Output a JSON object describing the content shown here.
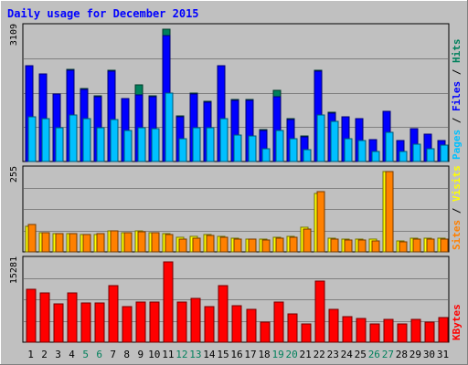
{
  "chart_data": {
    "type": "bar",
    "title": "Daily usage for December 2015",
    "categories": [
      "1",
      "2",
      "3",
      "4",
      "5",
      "6",
      "7",
      "8",
      "9",
      "10",
      "11",
      "12",
      "13",
      "14",
      "15",
      "16",
      "17",
      "18",
      "19",
      "20",
      "21",
      "22",
      "23",
      "24",
      "25",
      "26",
      "27",
      "28",
      "29",
      "30",
      "31"
    ],
    "weekend_days": [
      5,
      6,
      12,
      13,
      19,
      20,
      26,
      27
    ],
    "colors": {
      "hits": "#00805c",
      "files": "#0000ff",
      "pages": "#00c0ff",
      "visits": "#ffff00",
      "sites": "#ff8000",
      "kbytes": "#ff0000",
      "title": "#0000ff",
      "weekend_label": "#00805c"
    },
    "panels": [
      {
        "id": "hits_files_pages",
        "ymax_label": "3109",
        "ylim": [
          0,
          3109
        ],
        "legend": [
          {
            "text": "Pages",
            "color": "#00c0ff"
          },
          {
            "text": "Files",
            "color": "#0000ff"
          },
          {
            "text": "Hits",
            "color": "#00805c"
          }
        ],
        "series": [
          {
            "name": "Hits",
            "values": [
              2260,
              2060,
              1590,
              2160,
              1710,
              1540,
              2140,
              1480,
              1800,
              1540,
              3109,
              1070,
              1600,
              1410,
              2260,
              1450,
              1450,
              740,
              1680,
              1000,
              590,
              2140,
              1150,
              1060,
              1010,
              520,
              1180,
              500,
              780,
              650,
              500
            ]
          },
          {
            "name": "Files",
            "values": [
              2250,
              2050,
              1580,
              2150,
              1700,
              1530,
              2130,
              1470,
              1560,
              1530,
              2950,
              1060,
              1590,
              1400,
              2250,
              1440,
              1440,
              730,
              1530,
              990,
              580,
              2130,
              1140,
              1050,
              1000,
              510,
              1170,
              490,
              770,
              640,
              490
            ]
          },
          {
            "name": "Pages",
            "values": [
              1040,
              1000,
              800,
              1100,
              1000,
              790,
              980,
              720,
              800,
              780,
              1600,
              540,
              800,
              800,
              1000,
              620,
              600,
              300,
              720,
              530,
              280,
              1100,
              940,
              530,
              500,
              230,
              690,
              230,
              400,
              290,
              380
            ]
          }
        ]
      },
      {
        "id": "visits_sites",
        "ymax_label": "255",
        "ylim": [
          0,
          255
        ],
        "legend": [
          {
            "text": "Sites",
            "color": "#ff8000"
          },
          {
            "text": "Visits",
            "color": "#ffff00"
          }
        ],
        "series": [
          {
            "name": "Visits",
            "values": [
              82,
              60,
              58,
              58,
              55,
              55,
              68,
              62,
              68,
              62,
              58,
              45,
              48,
              55,
              48,
              44,
              42,
              40,
              45,
              48,
              78,
              185,
              44,
              40,
              40,
              40,
              255,
              35,
              44,
              44,
              44
            ]
          },
          {
            "name": "Sites",
            "values": [
              88,
              60,
              58,
              58,
              55,
              58,
              68,
              62,
              64,
              60,
              54,
              42,
              44,
              52,
              46,
              40,
              40,
              38,
              44,
              46,
              72,
              190,
              42,
              38,
              38,
              35,
              255,
              32,
              42,
              42,
              40
            ]
          }
        ]
      },
      {
        "id": "kbytes",
        "ymax_label": "15281",
        "ylim": [
          0,
          15281
        ],
        "legend": [
          {
            "text": "KBytes",
            "color": "#ff0000"
          }
        ],
        "series": [
          {
            "name": "KBytes",
            "values": [
              10000,
              9300,
              7300,
              9300,
              7400,
              7500,
              10800,
              6800,
              7600,
              7600,
              15281,
              7600,
              8400,
              6800,
              10800,
              7000,
              6300,
              3900,
              7700,
              5400,
              3500,
              11600,
              6300,
              4800,
              4600,
              3400,
              4400,
              3400,
              4400,
              3900,
              4700
            ]
          }
        ]
      }
    ]
  }
}
